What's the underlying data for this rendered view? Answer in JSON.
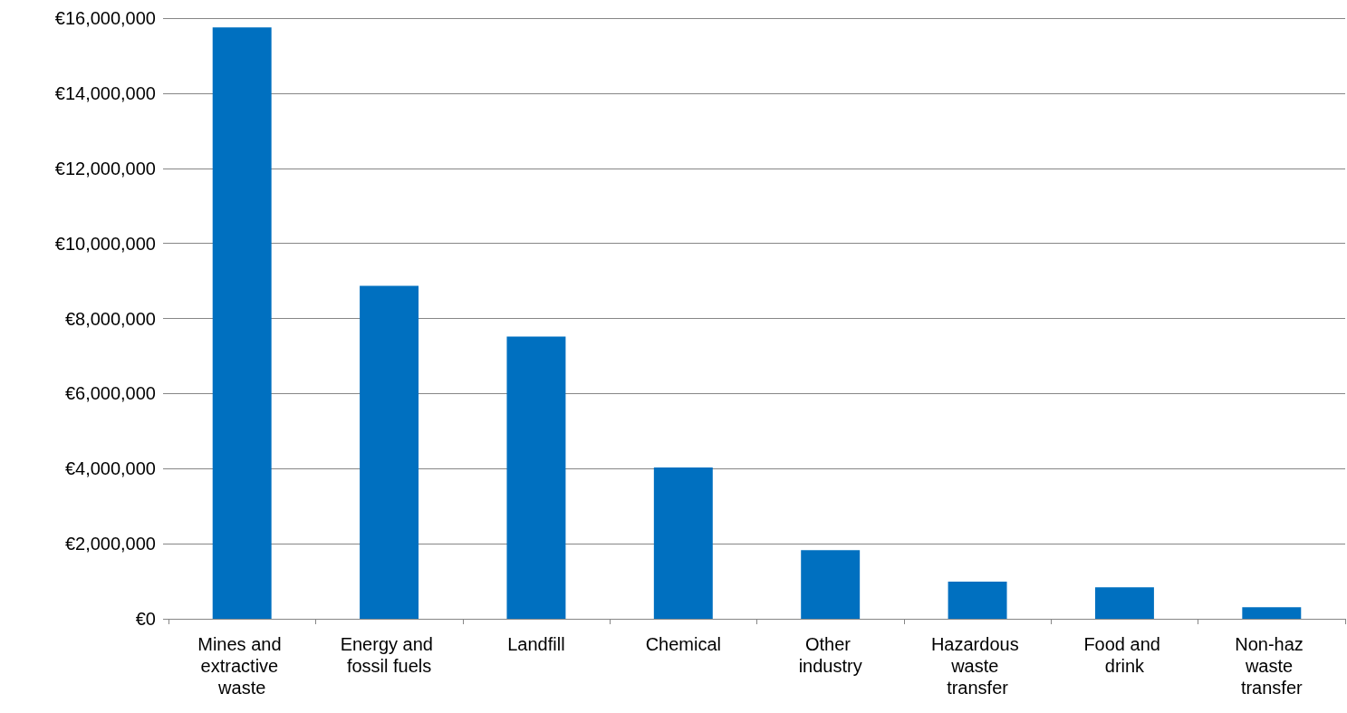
{
  "chart_data": {
    "type": "bar",
    "categories": [
      "Mines and extractive waste",
      "Energy and fossil fuels",
      "Landfill",
      "Chemical",
      "Other industry",
      "Hazardous waste transfer",
      "Food and drink",
      "Non-haz waste transfer"
    ],
    "values": [
      15750000,
      8870000,
      7520000,
      4030000,
      1830000,
      990000,
      840000,
      310000
    ],
    "color": "#0070c0",
    "ylim": [
      0,
      16000000
    ],
    "yticks": [
      {
        "value": 0,
        "label": "€0"
      },
      {
        "value": 2000000,
        "label": "€2,000,000"
      },
      {
        "value": 4000000,
        "label": "€4,000,000"
      },
      {
        "value": 6000000,
        "label": "€6,000,000"
      },
      {
        "value": 8000000,
        "label": "€8,000,000"
      },
      {
        "value": 10000000,
        "label": "€10,000,000"
      },
      {
        "value": 12000000,
        "label": "€12,000,000"
      },
      {
        "value": 14000000,
        "label": "€14,000,000"
      },
      {
        "value": 16000000,
        "label": "€16,000,000"
      }
    ],
    "grid": "y"
  }
}
